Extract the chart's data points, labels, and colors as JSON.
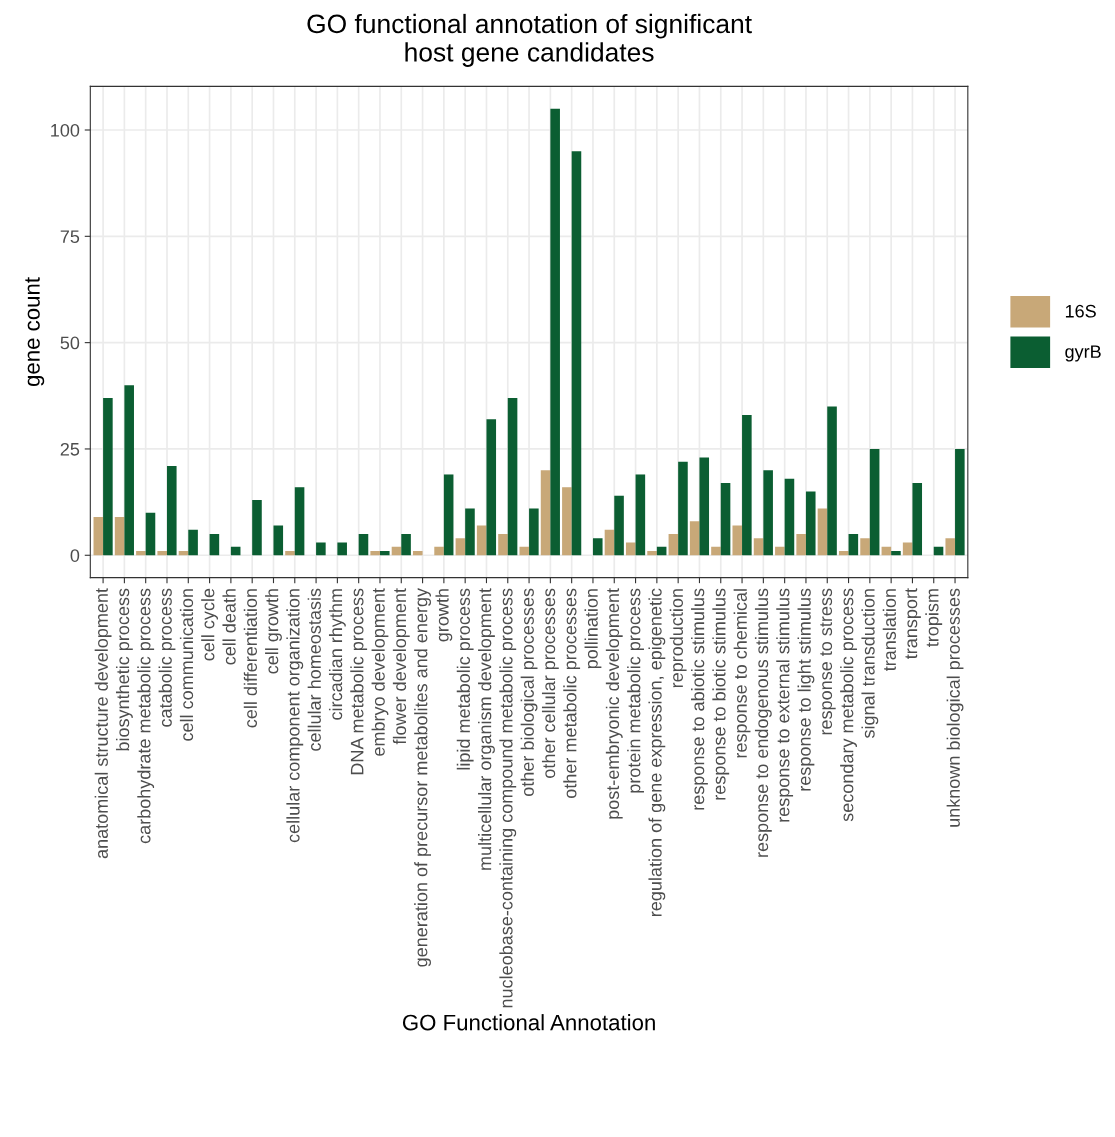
{
  "chart_data": {
    "type": "bar",
    "title": "GO functional annotation of significant\nhost gene candidates",
    "xlabel": "GO Functional Annotation",
    "ylabel": "gene count",
    "categories": [
      "anatomical structure development",
      "biosynthetic process",
      "carbohydrate metabolic process",
      "catabolic process",
      "cell communication",
      "cell cycle",
      "cell death",
      "cell differentiation",
      "cell growth",
      "cellular component organization",
      "cellular homeostasis",
      "circadian rhythm",
      "DNA metabolic process",
      "embryo development",
      "flower development",
      "generation of precursor metabolites and energy",
      "growth",
      "lipid metabolic process",
      "multicellular organism development",
      "nucleobase-containing compound metabolic process",
      "other biological processes",
      "other cellular processes",
      "other metabolic processes",
      "pollination",
      "post-embryonic development",
      "protein metabolic process",
      "regulation of gene expression, epigenetic",
      "reproduction",
      "response to abiotic stimulus",
      "response to biotic stimulus",
      "response to chemical",
      "response to endogenous stimulus",
      "response to external stimulus",
      "response to light stimulus",
      "response to stress",
      "secondary metabolic process",
      "signal transduction",
      "translation",
      "transport",
      "tropism",
      "unknown biological processes"
    ],
    "series": [
      {
        "name": "16S",
        "color": "#c8a878",
        "values": [
          9,
          9,
          1,
          1,
          1,
          null,
          null,
          null,
          null,
          1,
          null,
          null,
          null,
          1,
          2,
          1,
          2,
          4,
          7,
          5,
          2,
          20,
          16,
          null,
          6,
          3,
          1,
          5,
          8,
          2,
          7,
          4,
          2,
          5,
          11,
          1,
          4,
          2,
          3,
          null,
          4
        ]
      },
      {
        "name": "gyrB",
        "color": "#0b5e32",
        "values": [
          37,
          40,
          10,
          21,
          6,
          5,
          2,
          13,
          7,
          16,
          3,
          3,
          5,
          1,
          5,
          null,
          19,
          11,
          32,
          37,
          11,
          105,
          95,
          4,
          14,
          19,
          2,
          22,
          23,
          17,
          33,
          20,
          18,
          15,
          35,
          5,
          25,
          1,
          17,
          2,
          25
        ]
      }
    ],
    "ylim": [
      -5.25,
      110.25
    ],
    "yticks": [
      0,
      25,
      50,
      75,
      100
    ],
    "grid": true,
    "legend": "right"
  }
}
